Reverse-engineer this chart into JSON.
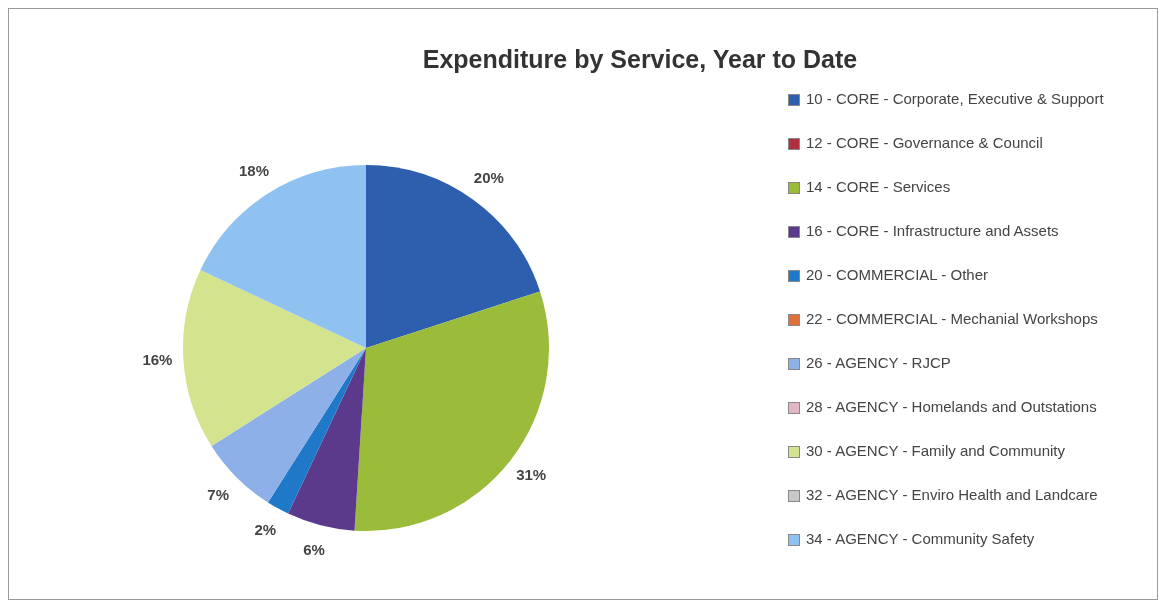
{
  "chart_data": {
    "type": "pie",
    "title": "Expenditure by Service, Year to Date",
    "categories": [
      "10 - CORE - Corporate, Executive & Support",
      "12 - CORE - Governance & Council",
      "14 - CORE - Services",
      "16 - CORE - Infrastructure and Assets",
      "20 - COMMERCIAL - Other",
      "22 - COMMERCIAL - Mechanial Workshops",
      "26 - AGENCY - RJCP",
      "28 - AGENCY - Homelands and Outstations",
      "30 - AGENCY - Family and Community",
      "32 - AGENCY - Enviro Health and Landcare",
      "34 - AGENCY - Community Safety"
    ],
    "values": [
      20,
      0,
      31,
      6,
      2,
      0,
      7,
      0,
      16,
      0,
      18
    ],
    "colors": [
      "#2e5fae",
      "#b03040",
      "#9bbb3b",
      "#5b3a8c",
      "#1f78c8",
      "#e0703a",
      "#8db0e8",
      "#e3b4c4",
      "#d4e38e",
      "#c8c8c8",
      "#8fc2f0"
    ],
    "value_labels": [
      "20%",
      null,
      "31%",
      "6%",
      "2%",
      null,
      "7%",
      null,
      "16%",
      null,
      "18%"
    ],
    "legend": "right"
  }
}
